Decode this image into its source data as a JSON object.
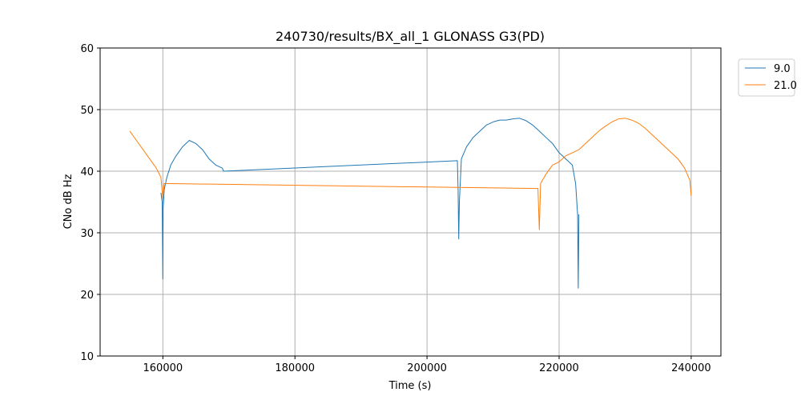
{
  "chart_data": {
    "type": "line",
    "title": "240730/results/BX_all_1 GLONASS G3(PD)",
    "xlabel": "Time (s)",
    "ylabel": "CNo dB Hz",
    "xlim": [
      150500,
      244500
    ],
    "ylim": [
      10,
      60
    ],
    "xticks": [
      160000,
      180000,
      200000,
      220000,
      240000
    ],
    "yticks": [
      10,
      20,
      30,
      40,
      50,
      60
    ],
    "grid": true,
    "legend_position": "outside-top-right",
    "series": [
      {
        "name": "9.0",
        "color": "#1f77b4",
        "points": [
          [
            159700,
            36.5
          ],
          [
            159900,
            35
          ],
          [
            160000,
            22.5
          ],
          [
            160050,
            34
          ],
          [
            160200,
            37
          ],
          [
            160600,
            39
          ],
          [
            161200,
            41
          ],
          [
            162000,
            42.5
          ],
          [
            163000,
            44
          ],
          [
            164000,
            45
          ],
          [
            165000,
            44.5
          ],
          [
            166000,
            43.5
          ],
          [
            167000,
            42
          ],
          [
            168000,
            41
          ],
          [
            169000,
            40.5
          ],
          [
            169200,
            40
          ],
          [
            204600,
            41.7
          ],
          [
            204700,
            37
          ],
          [
            204800,
            29
          ],
          [
            204900,
            35
          ],
          [
            205200,
            42
          ],
          [
            206000,
            44
          ],
          [
            207000,
            45.5
          ],
          [
            208000,
            46.5
          ],
          [
            209000,
            47.5
          ],
          [
            210000,
            48
          ],
          [
            211000,
            48.3
          ],
          [
            212000,
            48.3
          ],
          [
            213000,
            48.5
          ],
          [
            214000,
            48.6
          ],
          [
            215000,
            48.2
          ],
          [
            216000,
            47.5
          ],
          [
            217000,
            46.5
          ],
          [
            218000,
            45.5
          ],
          [
            219000,
            44.5
          ],
          [
            220000,
            43
          ],
          [
            221000,
            42
          ],
          [
            222000,
            41
          ],
          [
            222500,
            38
          ],
          [
            222800,
            33
          ],
          [
            222900,
            21
          ],
          [
            223000,
            33
          ]
        ]
      },
      {
        "name": "21.0",
        "color": "#ff7f0e",
        "points": [
          [
            155000,
            46.5
          ],
          [
            156000,
            45
          ],
          [
            157000,
            43.5
          ],
          [
            158000,
            42
          ],
          [
            159000,
            40.5
          ],
          [
            159700,
            39
          ],
          [
            160000,
            35.5
          ],
          [
            160200,
            38
          ],
          [
            216800,
            37.2
          ],
          [
            217000,
            30.5
          ],
          [
            217200,
            38
          ],
          [
            218000,
            39.5
          ],
          [
            219000,
            41
          ],
          [
            220000,
            41.5
          ],
          [
            221000,
            42.5
          ],
          [
            222000,
            43
          ],
          [
            223000,
            43.5
          ],
          [
            224000,
            44.5
          ],
          [
            225000,
            45.5
          ],
          [
            226000,
            46.5
          ],
          [
            227000,
            47.3
          ],
          [
            228000,
            48
          ],
          [
            229000,
            48.5
          ],
          [
            230000,
            48.6
          ],
          [
            231000,
            48.3
          ],
          [
            232000,
            47.8
          ],
          [
            233000,
            47
          ],
          [
            234000,
            46
          ],
          [
            235000,
            45
          ],
          [
            236000,
            44
          ],
          [
            237000,
            43
          ],
          [
            238000,
            42
          ],
          [
            239000,
            40.5
          ],
          [
            239800,
            38.5
          ],
          [
            240000,
            36
          ]
        ]
      }
    ]
  }
}
